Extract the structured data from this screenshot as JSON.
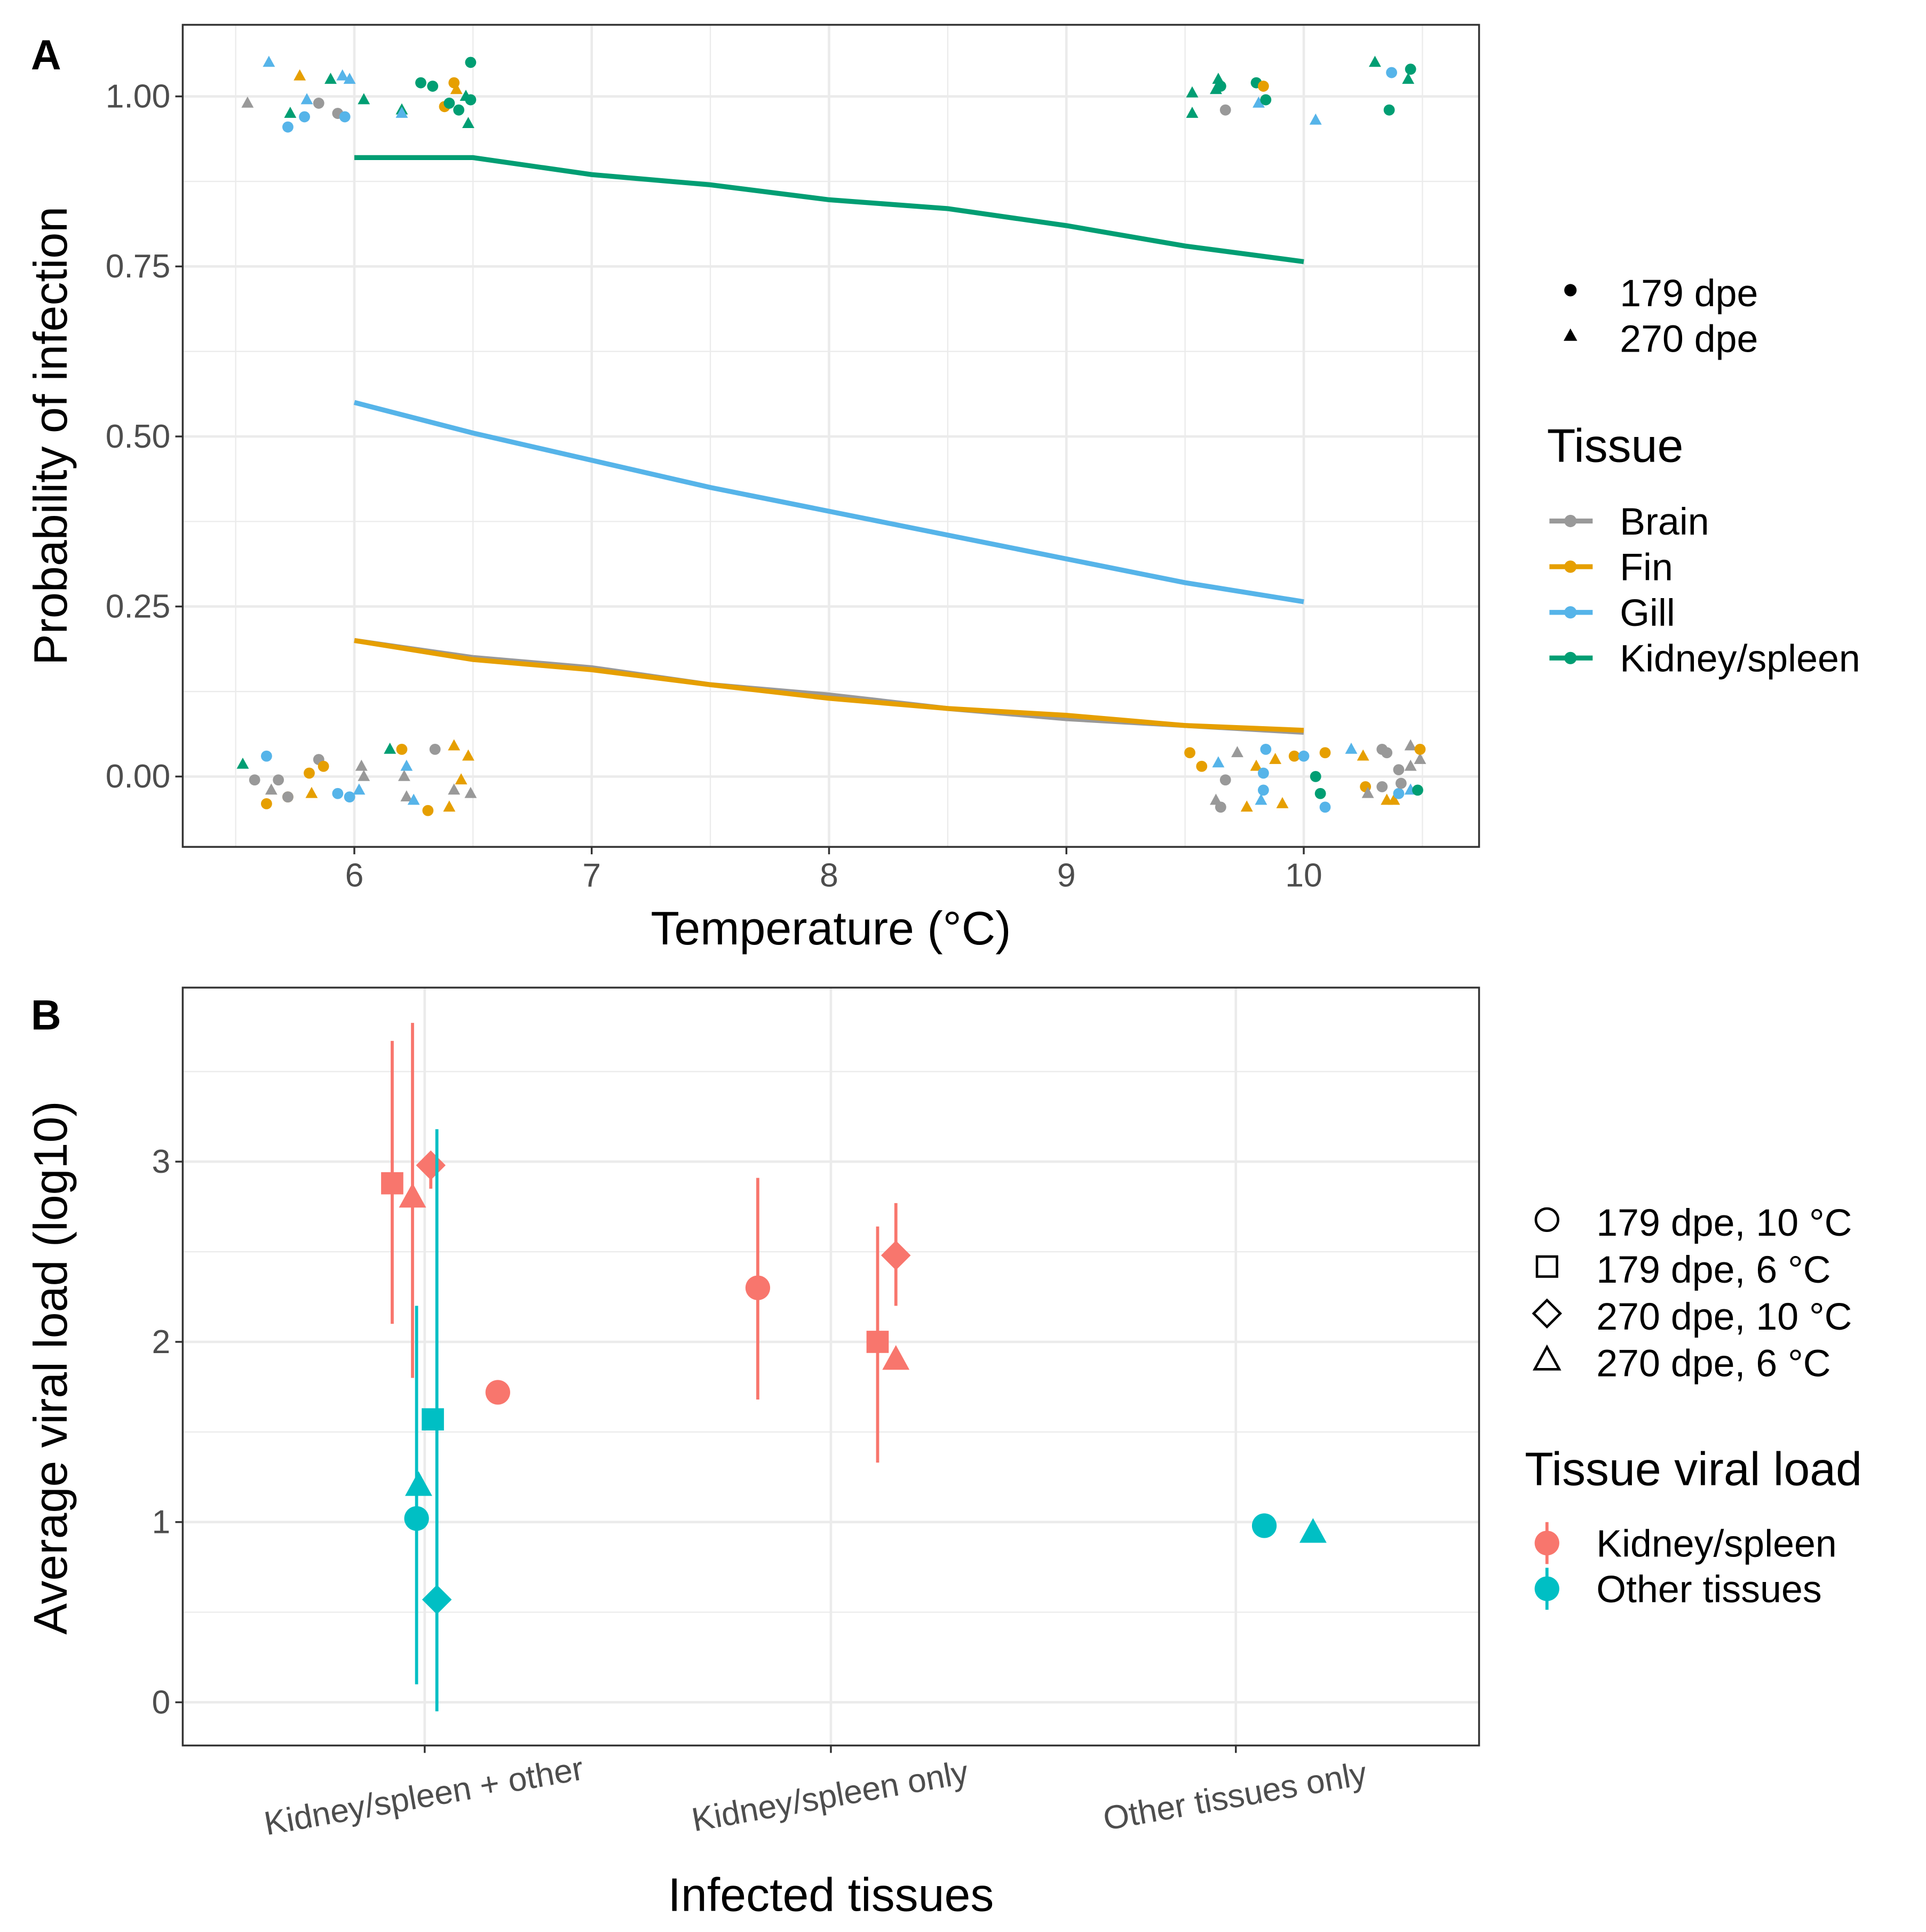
{
  "chart_data": [
    {
      "panel": "A",
      "type": "line",
      "xlabel": "Temperature (°C)",
      "ylabel": "Probability of infection",
      "xlim": [
        5.5,
        10.5
      ],
      "ylim": [
        -0.1,
        1.1
      ],
      "xticks": [
        "6",
        "7",
        "8",
        "9",
        "10"
      ],
      "yticks": [
        "0.00",
        "0.25",
        "0.50",
        "0.75",
        "1.00"
      ],
      "legend_shape": {
        "items": [
          {
            "label": "179 dpe",
            "shape": "circle"
          },
          {
            "label": "270 dpe",
            "shape": "triangle"
          }
        ]
      },
      "legend_color": {
        "title": "Tissue",
        "items": [
          "Brain",
          "Fin",
          "Gill",
          "Kidney/spleen"
        ]
      },
      "colors": {
        "Brain": "#999999",
        "Fin": "#E69F00",
        "Gill": "#56B4E9",
        "Kidney/spleen": "#009E73"
      },
      "x": [
        6,
        6.5,
        7,
        7.5,
        8,
        8.5,
        9,
        9.5,
        10
      ],
      "series": [
        {
          "name": "Brain",
          "values": [
            0.2,
            0.175,
            0.16,
            0.135,
            0.12,
            0.1,
            0.085,
            0.075,
            0.065
          ]
        },
        {
          "name": "Fin",
          "values": [
            0.2,
            0.172,
            0.157,
            0.135,
            0.115,
            0.1,
            0.09,
            0.075,
            0.068
          ]
        },
        {
          "name": "Gill",
          "values": [
            0.55,
            0.505,
            0.465,
            0.425,
            0.39,
            0.355,
            0.32,
            0.285,
            0.257
          ]
        },
        {
          "name": "Kidney/spleen",
          "values": [
            0.91,
            0.91,
            0.885,
            0.87,
            0.848,
            0.835,
            0.81,
            0.78,
            0.757
          ]
        }
      ],
      "points": [
        [
          5.55,
          0.99,
          "Brain",
          270
        ],
        [
          5.64,
          1.05,
          "Gill",
          270
        ],
        [
          5.72,
          0.955,
          "Gill",
          179
        ],
        [
          5.77,
          1.03,
          "Fin",
          270
        ],
        [
          5.73,
          0.975,
          "Kidney/spleen",
          270
        ],
        [
          5.79,
          0.97,
          "Gill",
          179
        ],
        [
          5.8,
          0.995,
          "Gill",
          270
        ],
        [
          5.85,
          0.99,
          "Brain",
          179
        ],
        [
          5.9,
          1.025,
          "Kidney/spleen",
          270
        ],
        [
          5.93,
          0.975,
          "Brain",
          179
        ],
        [
          5.95,
          1.03,
          "Gill",
          270
        ],
        [
          5.96,
          0.97,
          "Gill",
          179
        ],
        [
          5.98,
          1.025,
          "Gill",
          270
        ],
        [
          6.04,
          0.995,
          "Kidney/spleen",
          270
        ],
        [
          6.2,
          0.98,
          "Kidney/spleen",
          270
        ],
        [
          6.2,
          0.975,
          "Gill",
          270
        ],
        [
          6.28,
          1.02,
          "Kidney/spleen",
          179
        ],
        [
          6.33,
          1.015,
          "Kidney/spleen",
          179
        ],
        [
          6.38,
          0.985,
          "Fin",
          179
        ],
        [
          6.4,
          0.99,
          "Kidney/spleen",
          179
        ],
        [
          6.42,
          1.02,
          "Fin",
          179
        ],
        [
          6.43,
          1.01,
          "Fin",
          270
        ],
        [
          6.44,
          0.98,
          "Kidney/spleen",
          179
        ],
        [
          6.47,
          1.0,
          "Kidney/spleen",
          270
        ],
        [
          6.48,
          0.96,
          "Kidney/spleen",
          270
        ],
        [
          6.49,
          0.995,
          "Kidney/spleen",
          179
        ],
        [
          6.49,
          1.05,
          "Kidney/spleen",
          179
        ],
        [
          9.53,
          1.005,
          "Kidney/spleen",
          270
        ],
        [
          9.53,
          0.975,
          "Kidney/spleen",
          270
        ],
        [
          9.63,
          1.01,
          "Kidney/spleen",
          270
        ],
        [
          9.64,
          1.025,
          "Kidney/spleen",
          270
        ],
        [
          9.65,
          1.015,
          "Kidney/spleen",
          179
        ],
        [
          9.67,
          0.98,
          "Brain",
          179
        ],
        [
          9.8,
          1.02,
          "Kidney/spleen",
          179
        ],
        [
          9.81,
          0.99,
          "Gill",
          270
        ],
        [
          9.83,
          1.015,
          "Fin",
          179
        ],
        [
          9.84,
          0.995,
          "Kidney/spleen",
          179
        ],
        [
          10.05,
          0.965,
          "Gill",
          270
        ],
        [
          10.3,
          1.05,
          "Kidney/spleen",
          270
        ],
        [
          10.36,
          0.98,
          "Kidney/spleen",
          179
        ],
        [
          10.37,
          1.035,
          "Gill",
          179
        ],
        [
          10.44,
          1.025,
          "Kidney/spleen",
          270
        ],
        [
          10.45,
          1.04,
          "Kidney/spleen",
          179
        ],
        [
          5.53,
          0.018,
          "Kidney/spleen",
          270
        ],
        [
          5.58,
          -0.005,
          "Brain",
          179
        ],
        [
          5.63,
          0.03,
          "Gill",
          179
        ],
        [
          5.63,
          -0.04,
          "Fin",
          179
        ],
        [
          5.65,
          -0.02,
          "Brain",
          270
        ],
        [
          5.68,
          -0.005,
          "Brain",
          179
        ],
        [
          5.72,
          -0.03,
          "Fin",
          179
        ],
        [
          5.72,
          -0.03,
          "Brain",
          179
        ],
        [
          5.81,
          0.005,
          "Fin",
          179
        ],
        [
          5.82,
          -0.025,
          "Fin",
          270
        ],
        [
          5.85,
          0.025,
          "Brain",
          179
        ],
        [
          5.87,
          0.015,
          "Fin",
          179
        ],
        [
          5.93,
          -0.025,
          "Gill",
          179
        ],
        [
          5.98,
          -0.03,
          "Gill",
          179
        ],
        [
          6.02,
          -0.02,
          "Gill",
          270
        ],
        [
          6.03,
          0.015,
          "Brain",
          270
        ],
        [
          6.04,
          0.0,
          "Brain",
          270
        ],
        [
          6.15,
          0.04,
          "Kidney/spleen",
          270
        ],
        [
          6.2,
          0.04,
          "Fin",
          179
        ],
        [
          6.21,
          0.0,
          "Brain",
          270
        ],
        [
          6.22,
          0.015,
          "Gill",
          270
        ],
        [
          6.22,
          -0.03,
          "Brain",
          270
        ],
        [
          6.25,
          -0.035,
          "Gill",
          270
        ],
        [
          6.31,
          -0.05,
          "Fin",
          179
        ],
        [
          6.34,
          0.04,
          "Brain",
          179
        ],
        [
          6.4,
          -0.045,
          "Fin",
          270
        ],
        [
          6.42,
          -0.02,
          "Brain",
          270
        ],
        [
          6.42,
          0.045,
          "Fin",
          270
        ],
        [
          6.45,
          -0.005,
          "Fin",
          270
        ],
        [
          6.48,
          0.03,
          "Fin",
          270
        ],
        [
          6.49,
          -0.025,
          "Brain",
          270
        ],
        [
          9.52,
          0.035,
          "Fin",
          179
        ],
        [
          9.57,
          0.015,
          "Fin",
          179
        ],
        [
          9.63,
          -0.035,
          "Brain",
          270
        ],
        [
          9.64,
          0.02,
          "Gill",
          270
        ],
        [
          9.65,
          -0.045,
          "Brain",
          179
        ],
        [
          9.67,
          -0.005,
          "Brain",
          179
        ],
        [
          9.72,
          0.035,
          "Brain",
          270
        ],
        [
          9.76,
          -0.045,
          "Fin",
          270
        ],
        [
          9.8,
          0.015,
          "Fin",
          270
        ],
        [
          9.82,
          -0.035,
          "Gill",
          270
        ],
        [
          9.83,
          0.005,
          "Gill",
          179
        ],
        [
          9.83,
          -0.02,
          "Gill",
          179
        ],
        [
          9.84,
          0.04,
          "Gill",
          179
        ],
        [
          9.88,
          0.025,
          "Fin",
          270
        ],
        [
          9.91,
          -0.04,
          "Fin",
          270
        ],
        [
          9.96,
          0.03,
          "Fin",
          179
        ],
        [
          10.0,
          0.03,
          "Gill",
          179
        ],
        [
          10.05,
          0.0,
          "Kidney/spleen",
          179
        ],
        [
          10.07,
          -0.025,
          "Kidney/spleen",
          179
        ],
        [
          10.09,
          0.035,
          "Fin",
          179
        ],
        [
          10.09,
          -0.045,
          "Gill",
          179
        ],
        [
          10.2,
          0.04,
          "Gill",
          270
        ],
        [
          10.25,
          0.03,
          "Fin",
          270
        ],
        [
          10.26,
          -0.015,
          "Fin",
          179
        ],
        [
          10.27,
          -0.025,
          "Brain",
          270
        ],
        [
          10.33,
          0.04,
          "Brain",
          179
        ],
        [
          10.33,
          -0.015,
          "Brain",
          179
        ],
        [
          10.35,
          0.035,
          "Brain",
          179
        ],
        [
          10.35,
          -0.035,
          "Fin",
          270
        ],
        [
          10.38,
          -0.035,
          "Fin",
          270
        ],
        [
          10.4,
          0.01,
          "Brain",
          179
        ],
        [
          10.4,
          -0.025,
          "Gill",
          179
        ],
        [
          10.41,
          -0.01,
          "Brain",
          179
        ],
        [
          10.45,
          -0.02,
          "Gill",
          270
        ],
        [
          10.45,
          0.045,
          "Brain",
          270
        ],
        [
          10.45,
          0.015,
          "Brain",
          270
        ],
        [
          10.48,
          -0.02,
          "Kidney/spleen",
          179
        ],
        [
          10.49,
          0.025,
          "Brain",
          270
        ],
        [
          10.49,
          0.04,
          "Fin",
          179
        ]
      ]
    },
    {
      "panel": "B",
      "type": "scatter",
      "xlabel": "Infected tissues",
      "ylabel": "Average viral load (log10)",
      "ylim": [
        -0.25,
        3.9
      ],
      "categories": [
        "Kidney/spleen + other",
        "Kidney/spleen only",
        "Other tissues only"
      ],
      "yticks": [
        "0",
        "1",
        "2",
        "3"
      ],
      "legend_shape": {
        "items": [
          {
            "label": "179 dpe, 10 °C",
            "shape": "circle"
          },
          {
            "label": "179 dpe, 6 °C",
            "shape": "square"
          },
          {
            "label": "270 dpe, 10 °C",
            "shape": "diamond"
          },
          {
            "label": "270 dpe, 6 °C",
            "shape": "triangle"
          }
        ]
      },
      "legend_color": {
        "title": "Tissue viral load",
        "items": [
          "Kidney/spleen",
          "Other tissues"
        ]
      },
      "colors": {
        "Kidney/spleen": "#F8766D",
        "Other tissues": "#00BFC4"
      },
      "points": [
        {
          "cat": 0,
          "dodge": -0.08,
          "y": 2.88,
          "lo": 2.1,
          "hi": 3.67,
          "group": "Kidney/spleen",
          "shape": "square"
        },
        {
          "cat": 0,
          "dodge": -0.03,
          "y": 2.8,
          "lo": 1.8,
          "hi": 3.77,
          "group": "Kidney/spleen",
          "shape": "triangle"
        },
        {
          "cat": 0,
          "dodge": 0.015,
          "y": 2.98,
          "lo": 2.85,
          "hi": 3.0,
          "group": "Kidney/spleen",
          "shape": "diamond"
        },
        {
          "cat": 0,
          "dodge": 0.18,
          "y": 1.72,
          "group": "Kidney/spleen",
          "shape": "circle"
        },
        {
          "cat": 0,
          "dodge": 0.02,
          "y": 1.57,
          "group": "Other tissues",
          "shape": "square"
        },
        {
          "cat": 0,
          "dodge": -0.015,
          "y": 1.2,
          "group": "Other tissues",
          "shape": "triangle"
        },
        {
          "cat": 0,
          "dodge": -0.02,
          "y": 1.02,
          "lo": 0.1,
          "hi": 2.2,
          "group": "Other tissues",
          "shape": "circle"
        },
        {
          "cat": 0,
          "dodge": 0.03,
          "y": 0.57,
          "lo": -0.05,
          "hi": 3.18,
          "group": "Other tissues",
          "shape": "diamond"
        },
        {
          "cat": 1,
          "dodge": -0.18,
          "y": 2.3,
          "lo": 1.68,
          "hi": 2.91,
          "group": "Kidney/spleen",
          "shape": "circle"
        },
        {
          "cat": 1,
          "dodge": 0.115,
          "y": 2.0,
          "lo": 1.33,
          "hi": 2.64,
          "group": "Kidney/spleen",
          "shape": "square"
        },
        {
          "cat": 1,
          "dodge": 0.16,
          "y": 2.48,
          "lo": 2.2,
          "hi": 2.77,
          "group": "Kidney/spleen",
          "shape": "diamond"
        },
        {
          "cat": 1,
          "dodge": 0.16,
          "y": 1.9,
          "group": "Kidney/spleen",
          "shape": "triangle"
        },
        {
          "cat": 2,
          "dodge": 0.07,
          "y": 0.98,
          "group": "Other tissues",
          "shape": "circle"
        },
        {
          "cat": 2,
          "dodge": 0.19,
          "y": 0.94,
          "group": "Other tissues",
          "shape": "triangle"
        }
      ]
    }
  ],
  "panel_labels": [
    "A",
    "B"
  ]
}
